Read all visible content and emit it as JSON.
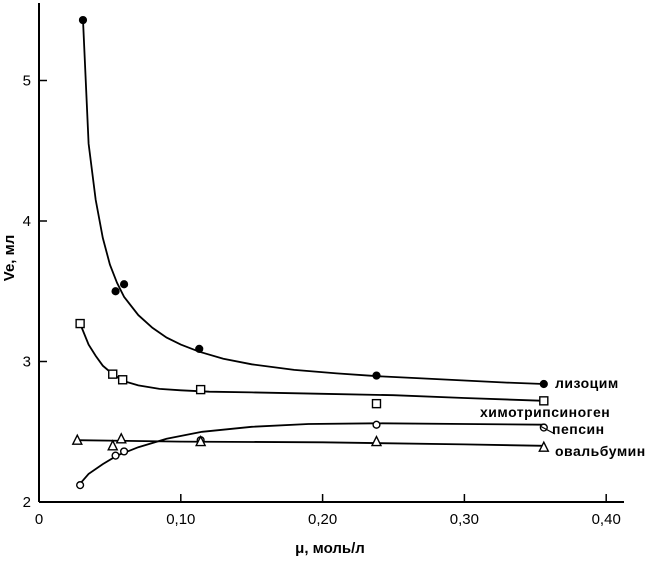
{
  "chart_data": {
    "type": "line",
    "title": "",
    "xlabel": "μ, моль/л",
    "ylabel": "Ve, мл",
    "xlim": [
      0,
      0.43
    ],
    "ylim": [
      2,
      5.5
    ],
    "grid": false,
    "x_ticks": [
      {
        "value": 0,
        "label": "0"
      },
      {
        "value": 0.1,
        "label": "0,10"
      },
      {
        "value": 0.2,
        "label": "0,20"
      },
      {
        "value": 0.3,
        "label": "0,30"
      },
      {
        "value": 0.4,
        "label": "0,40"
      }
    ],
    "y_ticks": [
      {
        "value": 2,
        "label": "2"
      },
      {
        "value": 3,
        "label": "3"
      },
      {
        "value": 4,
        "label": "4"
      },
      {
        "value": 5,
        "label": "5"
      }
    ],
    "series": [
      {
        "name": "лизоцим",
        "marker": "filled-circle",
        "x": [
          0.031,
          0.054,
          0.06,
          0.113,
          0.238,
          0.356
        ],
        "y": [
          5.43,
          3.5,
          3.55,
          3.09,
          2.9,
          2.84
        ],
        "curve_x": [
          0.031,
          0.035,
          0.04,
          0.045,
          0.05,
          0.055,
          0.06,
          0.07,
          0.08,
          0.09,
          0.1,
          0.113,
          0.13,
          0.15,
          0.18,
          0.21,
          0.24,
          0.27,
          0.3,
          0.33,
          0.356
        ],
        "curve_y": [
          5.43,
          4.55,
          4.15,
          3.88,
          3.69,
          3.56,
          3.46,
          3.33,
          3.24,
          3.17,
          3.12,
          3.07,
          3.02,
          2.98,
          2.94,
          2.915,
          2.895,
          2.88,
          2.865,
          2.85,
          2.84
        ]
      },
      {
        "name": "химотрипсиноген",
        "marker": "open-square",
        "x": [
          0.029,
          0.052,
          0.059,
          0.114,
          0.238,
          0.356
        ],
        "y": [
          3.27,
          2.91,
          2.87,
          2.8,
          2.7,
          2.72
        ],
        "curve_x": [
          0.029,
          0.035,
          0.04,
          0.045,
          0.052,
          0.06,
          0.07,
          0.085,
          0.1,
          0.12,
          0.15,
          0.2,
          0.25,
          0.3,
          0.356
        ],
        "curve_y": [
          3.27,
          3.12,
          3.04,
          2.97,
          2.91,
          2.86,
          2.83,
          2.805,
          2.795,
          2.785,
          2.78,
          2.77,
          2.76,
          2.74,
          2.72
        ]
      },
      {
        "name": "пепсин",
        "marker": "open-circle",
        "x": [
          0.029,
          0.054,
          0.06,
          0.114,
          0.238,
          0.356
        ],
        "y": [
          2.12,
          2.33,
          2.36,
          2.44,
          2.55,
          2.53
        ],
        "curve_x": [
          0.029,
          0.035,
          0.045,
          0.055,
          0.07,
          0.09,
          0.115,
          0.15,
          0.19,
          0.238,
          0.3,
          0.356
        ],
        "curve_y": [
          2.13,
          2.2,
          2.27,
          2.33,
          2.39,
          2.45,
          2.5,
          2.535,
          2.555,
          2.56,
          2.555,
          2.55
        ]
      },
      {
        "name": "овальбумин",
        "marker": "open-triangle",
        "x": [
          0.027,
          0.052,
          0.058,
          0.114,
          0.238,
          0.356
        ],
        "y": [
          2.44,
          2.4,
          2.45,
          2.43,
          2.43,
          2.39
        ],
        "curve_x": [
          0.027,
          0.1,
          0.2,
          0.3,
          0.356
        ],
        "curve_y": [
          2.44,
          2.43,
          2.425,
          2.41,
          2.4
        ]
      }
    ]
  }
}
